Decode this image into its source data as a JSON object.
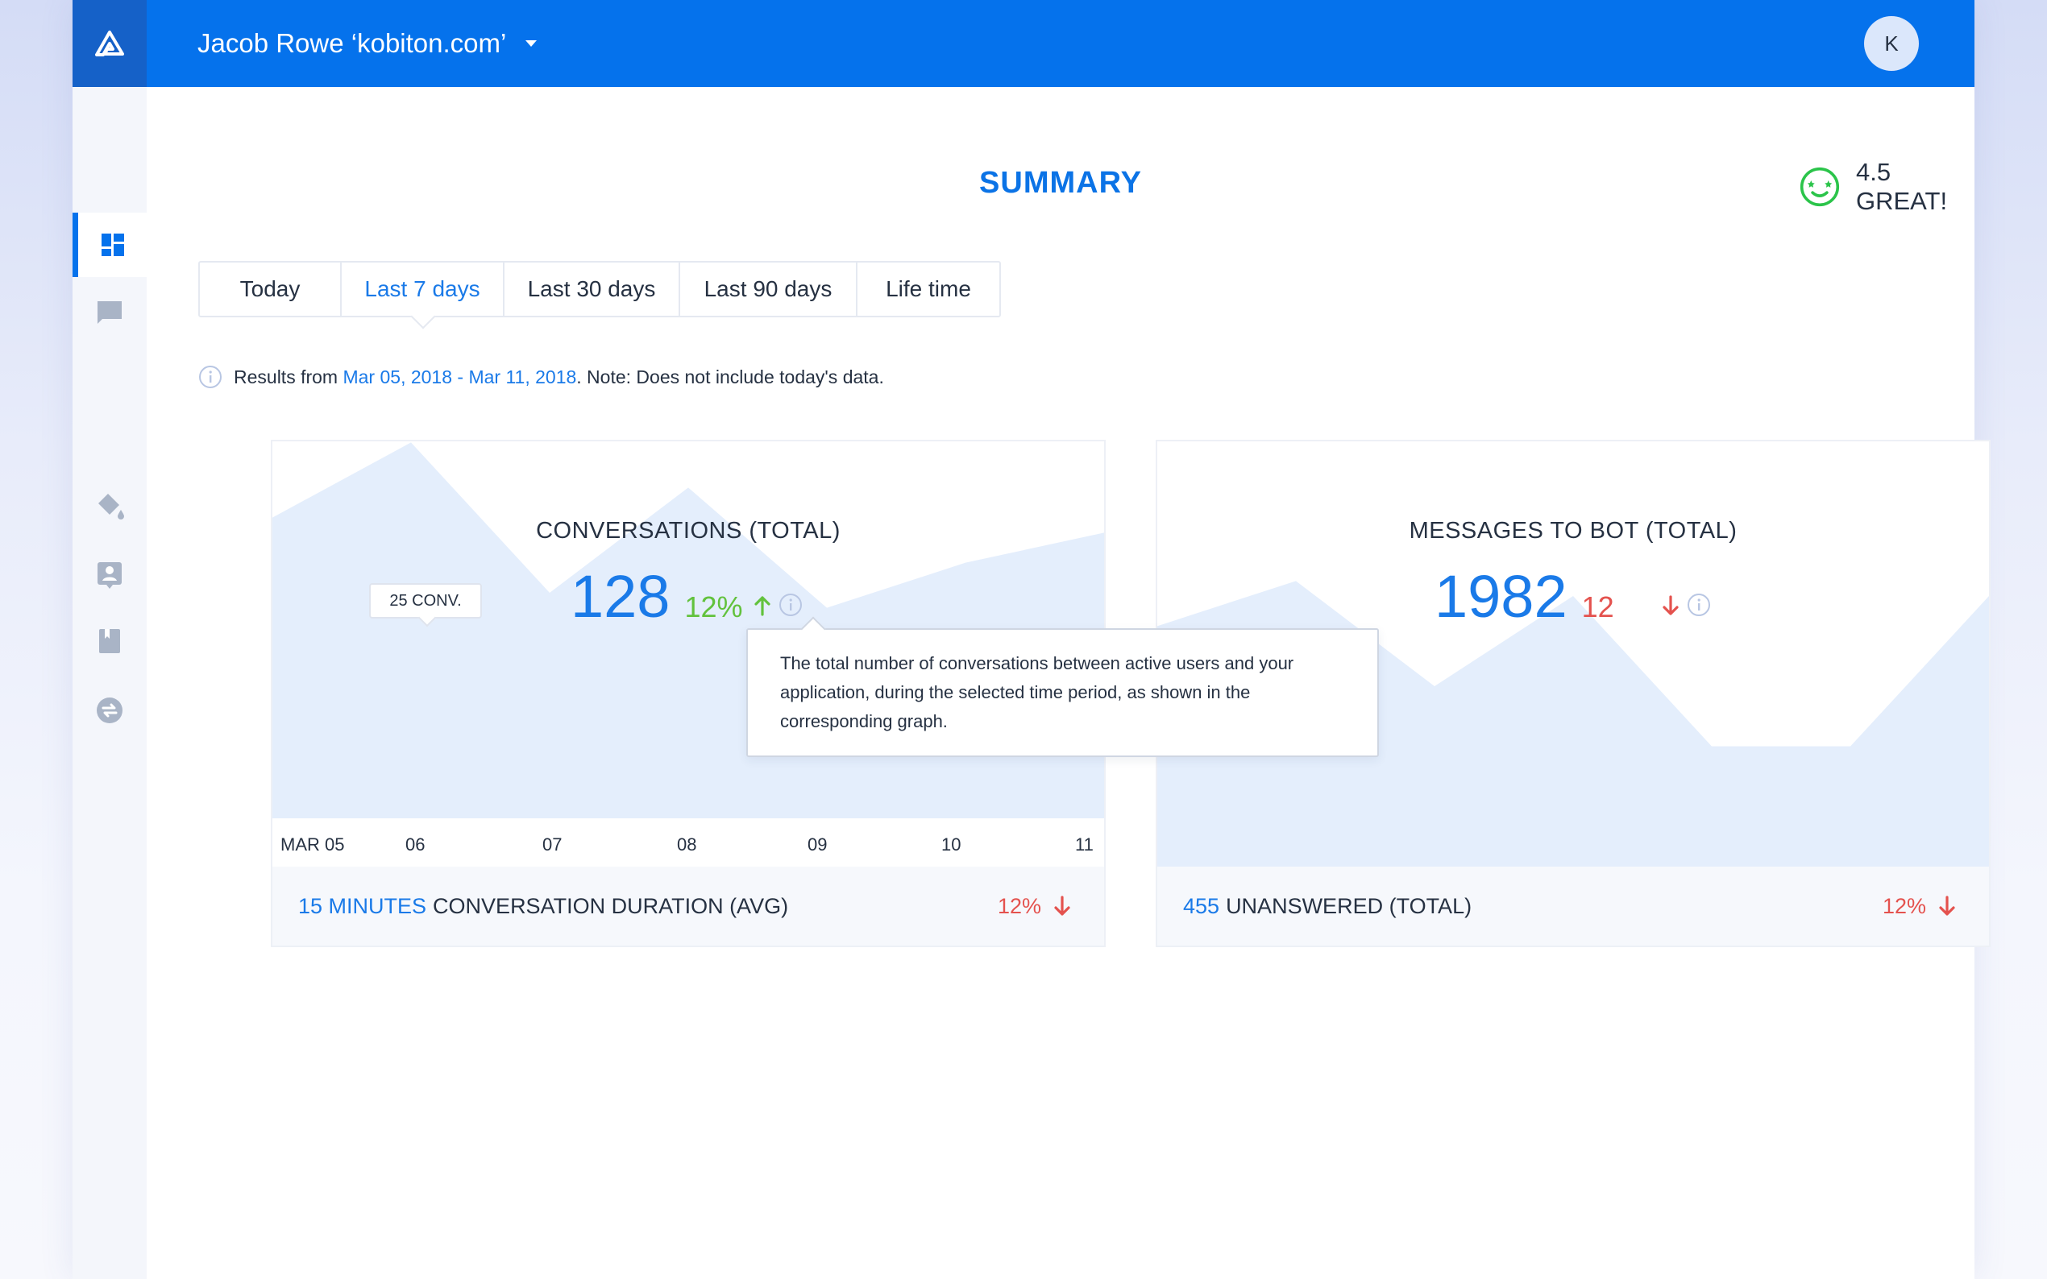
{
  "header": {
    "account_name": "Jacob Rowe ‘kobiton.com’",
    "avatar_initial": "K"
  },
  "sidebar": {
    "items": [
      {
        "icon": "dashboard-icon",
        "active": true
      },
      {
        "icon": "chat-icon",
        "active": false
      },
      {
        "icon": "paint-bucket-icon",
        "active": false
      },
      {
        "icon": "contact-card-icon",
        "active": false
      },
      {
        "icon": "book-icon",
        "active": false
      },
      {
        "icon": "exchange-icon",
        "active": false
      }
    ]
  },
  "summary": {
    "title": "SUMMARY",
    "rating": "4.5 GREAT!",
    "rating_icon": "smiley-star-eyes-icon",
    "rating_color": "#2bc44a"
  },
  "tabs": [
    {
      "label": "Today",
      "selected": false
    },
    {
      "label": "Last 7 days",
      "selected": true
    },
    {
      "label": "Last 30 days",
      "selected": false
    },
    {
      "label": "Last 90 days",
      "selected": false
    },
    {
      "label": "Life time",
      "selected": false
    }
  ],
  "note": {
    "prefix": "Results from",
    "range": "Mar 05, 2018 - Mar 11, 2018",
    "suffix": ". Note: Does not include today's data."
  },
  "conversations_card": {
    "title": "CONVERSATIONS (TOTAL)",
    "value": "128",
    "change": "12%",
    "change_direction": "up",
    "hover_tag": "25 CONV.",
    "footer_highlight": "15 MINUTES",
    "footer_label": "CONVERSATION DURATION (AVG)",
    "footer_change": "12%"
  },
  "messages_card": {
    "title": "MESSAGES TO BOT (TOTAL)",
    "value": "1982",
    "change": "12",
    "change_direction": "down",
    "footer_highlight": "455",
    "footer_label": "UNANSWERED (TOTAL)",
    "footer_change": "12%"
  },
  "tooltip": {
    "text": "The total number of conversations between active users and your application, during the selected time period, as shown in the corresponding graph."
  },
  "chart_data": [
    {
      "type": "area",
      "x": [
        "MAR 05",
        "06",
        "07",
        "08",
        "09",
        "10",
        "11"
      ],
      "values": [
        20,
        25,
        15,
        22,
        14,
        17,
        19
      ],
      "color": "#e4eefc"
    },
    {
      "type": "area",
      "x": [
        "MAR 05",
        "06",
        "07",
        "08",
        "09",
        "10",
        "11"
      ],
      "values": [
        16,
        19,
        12,
        18,
        8,
        8,
        18
      ],
      "color": "#e4eefc"
    }
  ],
  "colors": {
    "brand": "#0572ec",
    "accent_text": "#1a7ae8",
    "positive": "#62c23d",
    "negative": "#e4524e"
  }
}
